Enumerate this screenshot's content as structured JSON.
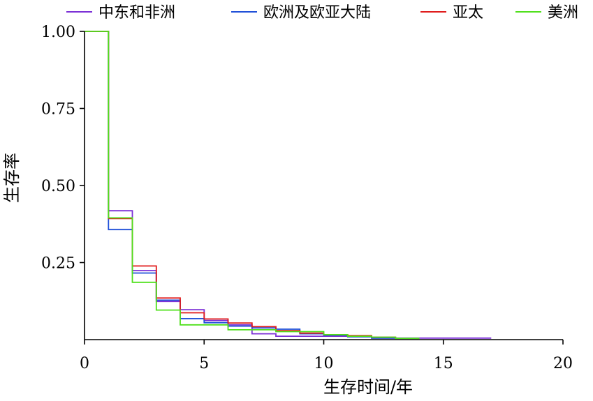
{
  "chart_data": {
    "type": "line",
    "step": "post",
    "title": "",
    "xlabel": "生存时间/年",
    "ylabel": "生存率",
    "xlim": [
      0,
      20
    ],
    "ylim": [
      0,
      1
    ],
    "xticks": [
      0,
      5,
      10,
      15,
      20
    ],
    "xtick_labels": [
      "0",
      "5",
      "10",
      "15",
      "20"
    ],
    "yticks": [
      0.25,
      0.5,
      0.75,
      1.0
    ],
    "ytick_labels": [
      "0.25",
      "0.50",
      "0.75",
      "1.00"
    ],
    "grid": false,
    "legend_position": "top",
    "series": [
      {
        "name": "中东和非洲",
        "color": "#7B2FD6",
        "x": [
          0,
          1,
          2,
          3,
          4,
          5,
          6,
          7,
          8,
          9,
          10,
          11,
          12,
          13,
          17
        ],
        "y": [
          1.0,
          0.418,
          0.224,
          0.124,
          0.097,
          0.062,
          0.048,
          0.019,
          0.011,
          0.011,
          0.011,
          0.011,
          0.005,
          0.005,
          0.005
        ]
      },
      {
        "name": "欧洲及欧亚大陆",
        "color": "#1F4FD8",
        "x": [
          0,
          1,
          2,
          3,
          4,
          5,
          6,
          7,
          8,
          9,
          10,
          11,
          12,
          13
        ],
        "y": [
          1.0,
          0.357,
          0.216,
          0.128,
          0.068,
          0.055,
          0.044,
          0.038,
          0.034,
          0.019,
          0.014,
          0.009,
          0.005,
          0.004
        ]
      },
      {
        "name": "亚太",
        "color": "#E01B1B",
        "x": [
          0,
          1,
          2,
          3,
          4,
          5,
          6,
          7,
          8,
          9,
          10,
          11,
          12,
          13
        ],
        "y": [
          1.0,
          0.393,
          0.239,
          0.135,
          0.087,
          0.067,
          0.054,
          0.042,
          0.029,
          0.021,
          0.016,
          0.013,
          0.008,
          0.006
        ]
      },
      {
        "name": "美洲",
        "color": "#4FE01B",
        "x": [
          0,
          1,
          2,
          3,
          4,
          5,
          6,
          7,
          8,
          9,
          10,
          11,
          12,
          13,
          14
        ],
        "y": [
          1.0,
          0.395,
          0.186,
          0.096,
          0.048,
          0.048,
          0.032,
          0.032,
          0.026,
          0.026,
          0.016,
          0.011,
          0.008,
          0.004,
          0.004
        ]
      }
    ]
  }
}
